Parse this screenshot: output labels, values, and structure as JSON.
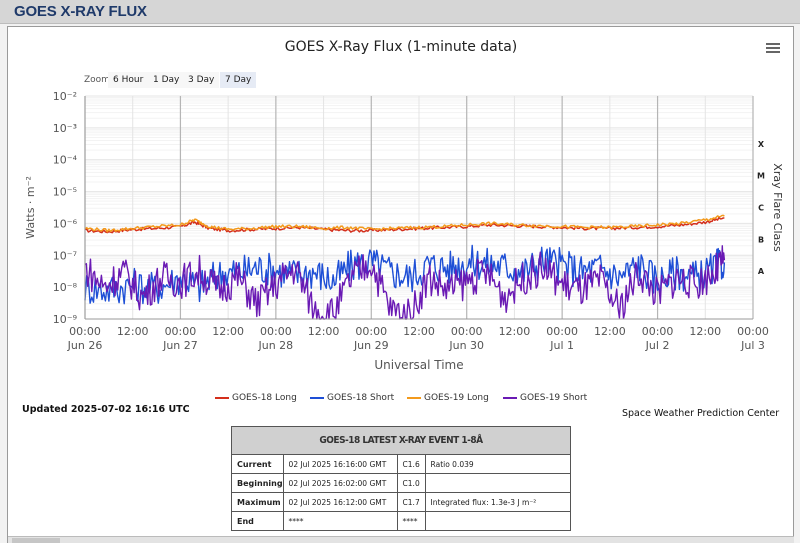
{
  "header": {
    "title": "GOES X-RAY FLUX"
  },
  "chart_data": {
    "type": "line",
    "title": "GOES X-Ray Flux (1-minute data)",
    "xlabel": "Universal Time",
    "ylabel": "Watts · m⁻²",
    "ylabel_right": "Xray Flare Class",
    "yscale": "log",
    "ylim": [
      1e-09,
      0.01
    ],
    "y_ticks": [
      "10⁻²",
      "10⁻³",
      "10⁻⁴",
      "10⁻⁵",
      "10⁻⁶",
      "10⁻⁷",
      "10⁻⁸",
      "10⁻⁹"
    ],
    "x_ticks": [
      {
        "time": "00:00",
        "date": "Jun 26"
      },
      {
        "time": "12:00",
        "date": ""
      },
      {
        "time": "00:00",
        "date": "Jun 27"
      },
      {
        "time": "12:00",
        "date": ""
      },
      {
        "time": "00:00",
        "date": "Jun 28"
      },
      {
        "time": "12:00",
        "date": ""
      },
      {
        "time": "00:00",
        "date": "Jun 29"
      },
      {
        "time": "12:00",
        "date": ""
      },
      {
        "time": "00:00",
        "date": "Jun 30"
      },
      {
        "time": "12:00",
        "date": ""
      },
      {
        "time": "00:00",
        "date": "Jul 1"
      },
      {
        "time": "12:00",
        "date": ""
      },
      {
        "time": "00:00",
        "date": "Jul 2"
      },
      {
        "time": "12:00",
        "date": ""
      },
      {
        "time": "00:00",
        "date": "Jul 3"
      }
    ],
    "flare_classes": [
      {
        "label": "X",
        "value": 0.0001
      },
      {
        "label": "M",
        "value": 1e-05
      },
      {
        "label": "C",
        "value": 1e-06
      },
      {
        "label": "B",
        "value": 1e-07
      },
      {
        "label": "A",
        "value": 1e-08
      }
    ],
    "grid": true,
    "legend_position": "bottom",
    "series": [
      {
        "name": "GOES-18 Long",
        "color": "#d42f1c",
        "x_days": [
          0,
          0.25,
          0.5,
          0.75,
          1.0,
          1.15,
          1.3,
          1.5,
          1.75,
          2.0,
          2.25,
          2.5,
          2.75,
          3.0,
          3.25,
          3.5,
          3.75,
          4.0,
          4.25,
          4.5,
          4.75,
          5.0,
          5.25,
          5.5,
          5.75,
          6.0,
          6.25,
          6.5,
          6.7
        ],
        "values": [
          6e-07,
          5.5e-07,
          6.5e-07,
          7e-07,
          8e-07,
          1.1e-06,
          7e-07,
          6e-07,
          6.5e-07,
          7e-07,
          7.5e-07,
          6.5e-07,
          6e-07,
          6e-07,
          6.5e-07,
          7e-07,
          7.5e-07,
          8e-07,
          9e-07,
          8.5e-07,
          8e-07,
          7.5e-07,
          7e-07,
          7e-07,
          7.5e-07,
          8e-07,
          9e-07,
          1.1e-06,
          1.5e-06
        ]
      },
      {
        "name": "GOES-18 Short",
        "color": "#1e4fd6",
        "x_days": [
          0,
          0.25,
          0.5,
          0.75,
          1.0,
          1.2,
          1.4,
          1.6,
          1.8,
          2.0,
          2.2,
          2.4,
          2.6,
          2.8,
          3.0,
          3.2,
          3.4,
          3.6,
          3.8,
          4.0,
          4.2,
          4.4,
          4.6,
          4.8,
          5.0,
          5.2,
          5.4,
          5.6,
          5.8,
          6.0,
          6.2,
          6.4,
          6.6,
          6.7
        ],
        "values": [
          1e-08,
          8e-09,
          1.2e-08,
          9e-09,
          2e-08,
          1e-08,
          2.5e-08,
          3e-08,
          4e-08,
          3.5e-08,
          2.5e-08,
          3e-08,
          1.5e-08,
          5e-08,
          6e-08,
          3e-08,
          2e-08,
          5e-08,
          4e-08,
          6e-08,
          5.5e-08,
          4.5e-08,
          3e-08,
          7e-08,
          5e-08,
          3e-08,
          4e-08,
          2e-08,
          5e-08,
          1.5e-08,
          3e-08,
          2e-08,
          4e-08,
          6e-08
        ]
      },
      {
        "name": "GOES-19 Long",
        "color": "#f39a1c",
        "x_days": [
          0,
          0.25,
          0.5,
          0.75,
          1.0,
          1.15,
          1.3,
          1.5,
          1.75,
          2.0,
          2.25,
          2.5,
          2.75,
          3.0,
          3.25,
          3.5,
          3.75,
          4.0,
          4.25,
          4.5,
          4.75,
          5.0,
          5.25,
          5.5,
          5.75,
          6.0,
          6.25,
          6.5,
          6.7
        ],
        "values": [
          7e-07,
          6e-07,
          7e-07,
          8e-07,
          9e-07,
          1.3e-06,
          8e-07,
          6.5e-07,
          7e-07,
          8e-07,
          8e-07,
          7e-07,
          7.5e-07,
          6.5e-07,
          7e-07,
          7.5e-07,
          8e-07,
          9e-07,
          1e-06,
          9e-07,
          8.5e-07,
          8e-07,
          7.5e-07,
          7.5e-07,
          8e-07,
          9e-07,
          1e-06,
          1.3e-06,
          1.7e-06
        ]
      },
      {
        "name": "GOES-19 Short",
        "color": "#6a1ab4",
        "x_days": [
          0,
          0.2,
          0.4,
          0.6,
          0.8,
          1.0,
          1.2,
          1.4,
          1.6,
          1.8,
          2.0,
          2.2,
          2.4,
          2.6,
          2.8,
          3.0,
          3.2,
          3.4,
          3.6,
          3.8,
          4.0,
          4.2,
          4.4,
          4.6,
          4.8,
          5.0,
          5.2,
          5.4,
          5.6,
          5.8,
          6.0,
          6.2,
          6.4,
          6.6,
          6.7
        ],
        "values": [
          4e-08,
          1e-08,
          3e-08,
          5e-09,
          2e-08,
          1.5e-08,
          3e-08,
          8e-09,
          2e-08,
          3e-09,
          1.2e-08,
          4e-08,
          2e-09,
          1.5e-09,
          2e-08,
          6e-08,
          2e-09,
          1.2e-09,
          2e-08,
          8e-09,
          1.5e-08,
          3e-08,
          5e-09,
          2e-08,
          4e-08,
          1.2e-08,
          8e-09,
          1.5e-08,
          2e-09,
          3e-08,
          6e-09,
          2e-08,
          1.2e-08,
          3e-08,
          7e-08
        ]
      }
    ]
  },
  "zoom": {
    "label": "Zoom",
    "buttons": [
      "6 Hour",
      "1 Day",
      "3 Day",
      "7 Day"
    ],
    "active": "7 Day"
  },
  "updated": "Updated 2025-07-02 16:16 UTC",
  "credit": "Space Weather Prediction Center",
  "event_table": {
    "title": "GOES-18 LATEST X-RAY EVENT 1-8Å",
    "rows": [
      {
        "label": "Current",
        "time": "02 Jul 2025 16:16:00 GMT",
        "class": "C1.6",
        "extra": "Ratio 0.039"
      },
      {
        "label": "Beginning",
        "time": "02 Jul 2025 16:02:00 GMT",
        "class": "C1.0",
        "extra": ""
      },
      {
        "label": "Maximum",
        "time": "02 Jul 2025 16:12:00 GMT",
        "class": "C1.7",
        "extra": "Integrated flux: 1.3e-3 J m⁻²"
      },
      {
        "label": "End",
        "time": "****",
        "class": "****",
        "extra": ""
      }
    ]
  }
}
